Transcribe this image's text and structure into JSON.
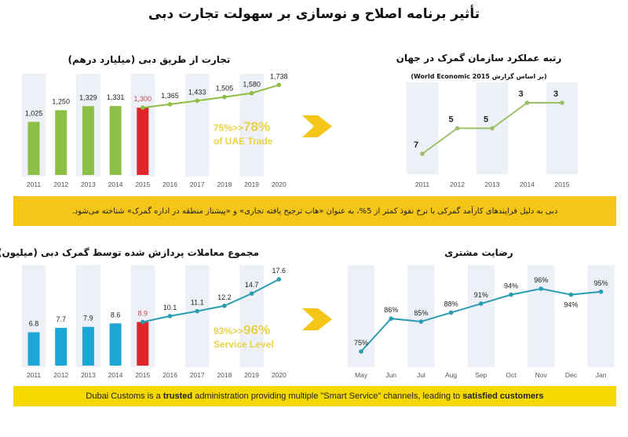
{
  "title": "تأثیر برنامه اصلاح و نوسازی بر سهولت تجارت دبی",
  "banner_top": "دبی به دلیل فرایندهای کارآمد گمرکی با نرخ نفوذ کمتر از 5%، به عنوان «هاب ترجیح یافته تجاری» و «پیشتاز منطقه در اداره گمرک» شناخته می‌شود.",
  "banner_bottom": {
    "p1": "Dubai Customs is a ",
    "b1": "trusted",
    "p2": " administration providing multiple \"Smart Service\" channels, leading to ",
    "b2": "satisfied customers"
  },
  "colors": {
    "green": "#8dbf45",
    "blue": "#1aa7d6",
    "red": "#e0262b",
    "teal": "#2a9db0",
    "yellow": "#f5c518",
    "band": "#eef0f8"
  },
  "highlights": {
    "trade": {
      "from": "75%>>",
      "to": "78%",
      "sub": "of UAE Trade"
    },
    "service": {
      "from": "93%>>",
      "to": "96%",
      "sub": "Service Level"
    }
  },
  "chart_data": [
    {
      "type": "bar",
      "title": "تجارت از طریق دبی (میلیارد درهم)",
      "categories": [
        "2011",
        "2012",
        "2013",
        "2014",
        "2015",
        "2016",
        "2017",
        "2018",
        "2019",
        "2020"
      ],
      "bars": [
        1025,
        1250,
        1329,
        1331,
        1300,
        null,
        null,
        null,
        null,
        null
      ],
      "line": [
        null,
        null,
        null,
        null,
        1300,
        1365,
        1433,
        1505,
        1580,
        1738
      ],
      "labels": [
        "1,025",
        "1,250",
        "1,329",
        "1,331",
        "1,300",
        "1,365",
        "1,433",
        "1,505",
        "1,580",
        "1,738"
      ],
      "highlight_category": "2015"
    },
    {
      "type": "line",
      "title": "رتبه عملکرد سازمان گمرک در جهان",
      "subtitle": "(بر اساس گزارش World Economic 2015)",
      "categories": [
        "2011",
        "2012",
        "2013",
        "2014",
        "2015"
      ],
      "values": [
        7,
        5,
        5,
        3,
        3
      ],
      "labels": [
        "7",
        "5",
        "5",
        "3",
        "3"
      ]
    },
    {
      "type": "bar",
      "title": "مجموع معاملات پردازش شده توسط گمرک دبی (میلیون)",
      "categories": [
        "2011",
        "2012",
        "2013",
        "2014",
        "2015",
        "2016",
        "2017",
        "2018",
        "2019",
        "2020"
      ],
      "bars": [
        6.8,
        7.7,
        7.9,
        8.6,
        8.9,
        null,
        null,
        null,
        null,
        null
      ],
      "line": [
        null,
        null,
        null,
        null,
        8.9,
        10.1,
        11.1,
        12.2,
        14.7,
        17.6
      ],
      "labels": [
        "6.8",
        "7.7",
        "7.9",
        "8.6",
        "8.9",
        "10.1",
        "11.1",
        "12.2",
        "14.7",
        "17.6"
      ],
      "highlight_category": "2015"
    },
    {
      "type": "line",
      "title": "رضایت مشتری",
      "categories": [
        "May",
        "Jun",
        "Jul",
        "Aug",
        "Sep",
        "Oct",
        "Nov",
        "Dec",
        "Jan"
      ],
      "values": [
        75,
        86,
        85,
        88,
        91,
        94,
        96,
        94,
        95
      ],
      "labels": [
        "75%",
        "86%",
        "85%",
        "88%",
        "91%",
        "94%",
        "96%",
        "94%",
        "95%"
      ]
    }
  ]
}
